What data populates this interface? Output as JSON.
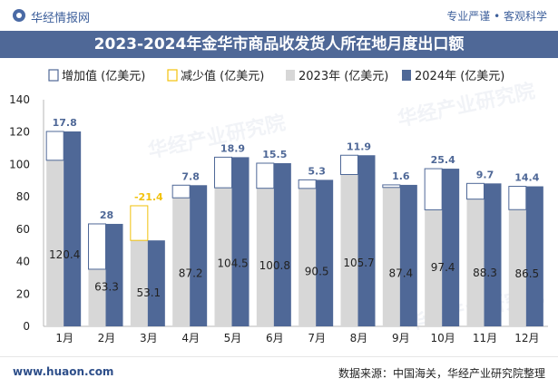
{
  "header": {
    "brand": "华经情报网",
    "slogan": "专业严谨 • 客观科学"
  },
  "title": "2023-2024年金华市商品收发货人所在地月度出口额",
  "footer": {
    "website": "www.huaon.com",
    "source": "数据来源：中国海关，华经产业研究院整理"
  },
  "watermark": "华经产业研究院",
  "colors": {
    "series_2023": "#d7d7d7",
    "series_2024": "#4f6897",
    "increase": "#4f6897",
    "decrease": "#f2c20c",
    "title_bg": "#4f6897"
  },
  "chart_data": {
    "type": "bar",
    "categories": [
      "1月",
      "2月",
      "3月",
      "4月",
      "5月",
      "6月",
      "7月",
      "8月",
      "9月",
      "10月",
      "11月",
      "12月"
    ],
    "series": [
      {
        "name": "2023年 (亿美元)",
        "values": [
          102.6,
          35.3,
          74.5,
          79.4,
          85.6,
          85.3,
          85.2,
          93.8,
          85.8,
          72.0,
          78.6,
          72.1
        ]
      },
      {
        "name": "2024年 (亿美元)",
        "values": [
          120.4,
          63.3,
          53.1,
          87.2,
          104.5,
          100.8,
          90.5,
          105.7,
          87.4,
          97.4,
          88.3,
          86.5
        ]
      }
    ],
    "change": {
      "increase_label": "增加值 (亿美元)",
      "decrease_label": "减少值 (亿美元)",
      "labels": [
        "17.8",
        "28",
        "-21.4",
        "7.8",
        "18.9",
        "15.5",
        "5.3",
        "11.9",
        "1.6",
        "25.4",
        "9.7",
        "14.4"
      ]
    },
    "data_labels": [
      "120.4",
      "63.3",
      "53.1",
      "87.2",
      "104.5",
      "100.8",
      "90.5",
      "105.7",
      "87.4",
      "97.4",
      "88.3",
      "86.5"
    ],
    "ylim": [
      0,
      140
    ],
    "yticks": [
      0,
      20,
      40,
      60,
      80,
      100,
      120,
      140
    ],
    "grid": false,
    "legend_position": "top"
  }
}
